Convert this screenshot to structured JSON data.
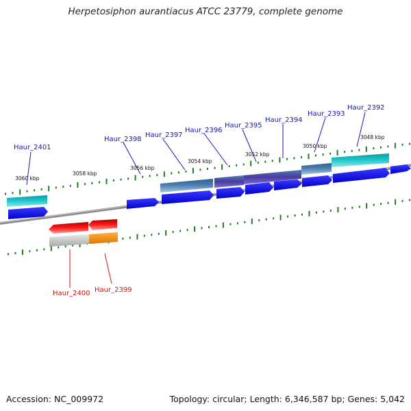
{
  "title": "Herpetosiphon aurantiacus ATCC 23779, complete genome",
  "accession": "Accession: NC_009972",
  "topology": "Topology: circular; Length: 6,346,587 bp; Genes: 5,042",
  "colors": {
    "backbone": "#7a7a7a",
    "tick": "#1f7a1f",
    "cds": "#0a0ae6",
    "forward_label": "#1414b4",
    "reverse_label": "#c81414",
    "cyan_feature": "#19c6cc",
    "steel_feature": "#4a7fb0",
    "indigo_feature": "#4b3aa0",
    "red_feature": "#e41414",
    "gray_feature": "#bdbdbd",
    "orange_feature": "#f08c14"
  },
  "scale_labels": [
    "3060 kbp",
    "3058 kbp",
    "3056 kbp",
    "3054 kbp",
    "3052 kbp",
    "3050 kbp",
    "3048 kbp"
  ],
  "forward_genes": [
    "Haur_2401",
    "Haur_2398",
    "Haur_2397",
    "Haur_2396",
    "Haur_2395",
    "Haur_2394",
    "Haur_2393",
    "Haur_2392"
  ],
  "reverse_genes": [
    "Haur_2400",
    "Haur_2399"
  ]
}
